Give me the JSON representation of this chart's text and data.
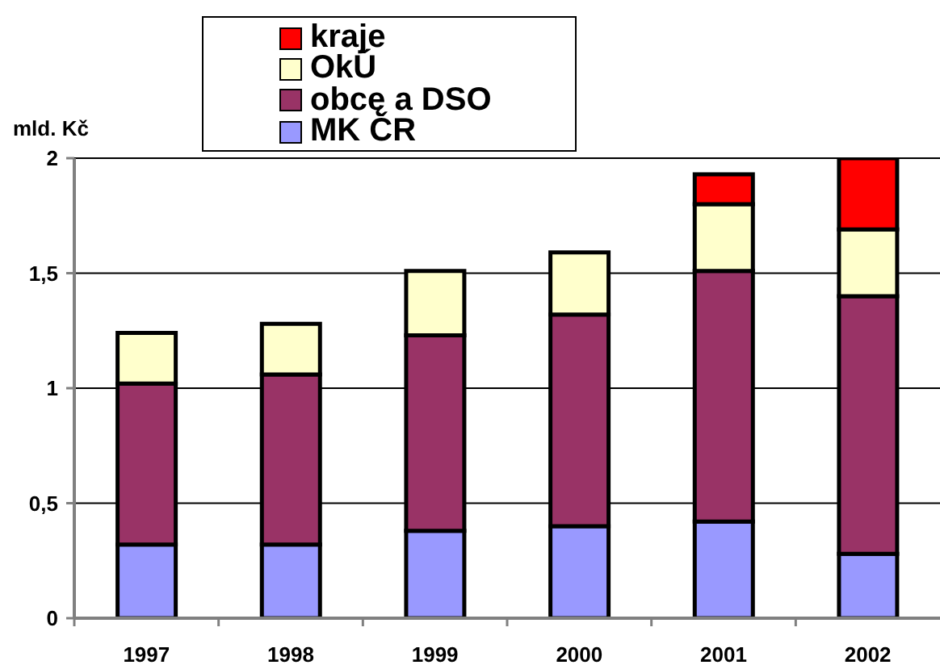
{
  "chart_data": {
    "type": "bar",
    "stacked": true,
    "categories": [
      "1997",
      "1998",
      "1999",
      "2000",
      "2001",
      "2002"
    ],
    "series": [
      {
        "name": "MK ČR",
        "color": "#9999ff",
        "values": [
          0.32,
          0.32,
          0.38,
          0.4,
          0.42,
          0.28
        ]
      },
      {
        "name": "obcę a DSO",
        "color": "#993366",
        "values": [
          0.7,
          0.74,
          0.85,
          0.92,
          1.09,
          1.12
        ]
      },
      {
        "name": "OkÚ",
        "color": "#ffffcc",
        "values": [
          0.22,
          0.22,
          0.28,
          0.27,
          0.29,
          0.29
        ]
      },
      {
        "name": "kraje",
        "color": "#ff0000",
        "values": [
          null,
          null,
          null,
          null,
          0.13,
          0.31
        ]
      }
    ],
    "ylabel": "mld. Kč",
    "ylim": [
      0,
      2
    ],
    "yticks": [
      0,
      {
        "value": 0.5,
        "label": "0,5"
      },
      1,
      {
        "value": 1.5,
        "label": "1,5"
      },
      2
    ],
    "grid": "y",
    "legend": "top"
  }
}
